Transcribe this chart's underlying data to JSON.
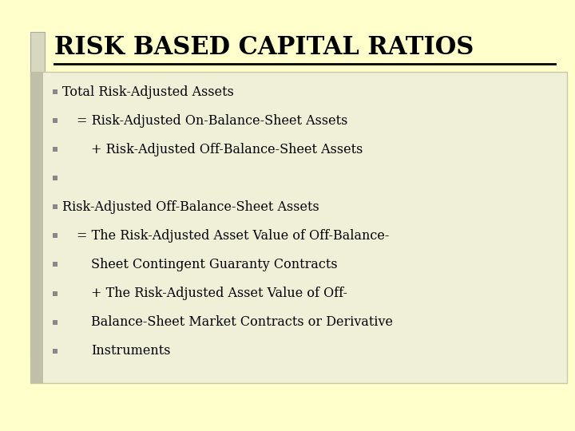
{
  "title": "RISK BASED CAPITAL RATIOS",
  "background_color": "#FFFFCC",
  "content_box_color": "#F0F0D8",
  "content_box_border": "#C8C8A8",
  "title_color": "#000000",
  "text_color": "#000000",
  "bullet_color": "#888888",
  "left_bar_color": "#C0C0A8",
  "bullet_lines": [
    {
      "indent": 0,
      "text": "Total Risk-Adjusted Assets"
    },
    {
      "indent": 1,
      "text": "= Risk-Adjusted On-Balance-Sheet Assets"
    },
    {
      "indent": 2,
      "text": "+ Risk-Adjusted Off-Balance-Sheet Assets"
    },
    {
      "indent": 0,
      "text": ""
    },
    {
      "indent": 0,
      "text": "Risk-Adjusted Off-Balance-Sheet Assets"
    },
    {
      "indent": 1,
      "text": "= The Risk-Adjusted Asset Value of Off-Balance-"
    },
    {
      "indent": 2,
      "text": "Sheet Contingent Guaranty Contracts"
    },
    {
      "indent": 2,
      "text": "+ The Risk-Adjusted Asset Value of Off-"
    },
    {
      "indent": 2,
      "text": "Balance-Sheet Market Contracts or Derivative"
    },
    {
      "indent": 2,
      "text": "Instruments"
    }
  ],
  "font_size_title": 22,
  "font_size_body": 11.5,
  "figsize": [
    7.2,
    5.4
  ],
  "dpi": 100
}
